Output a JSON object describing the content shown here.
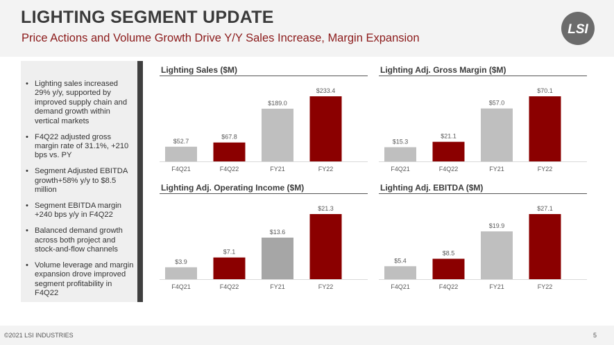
{
  "header": {
    "title": "LIGHTING SEGMENT UPDATE",
    "subtitle": "Price Actions and Volume Growth Drive Y/Y Sales Increase, Margin Expansion",
    "logo_text": "LSI"
  },
  "bullets": [
    "Lighting sales increased 29% y/y, supported by improved supply chain and demand growth within vertical markets",
    "F4Q22 adjusted gross margin rate of 31.1%, +210 bps vs. PY",
    "Segment Adjusted EBITDA growth+58% y/y to $8.5 million",
    "Segment EBITDA margin +240 bps y/y in F4Q22",
    "Balanced demand growth across both project and stock-and-flow channels",
    "Volume leverage and margin expansion drove improved segment profitability in F4Q22"
  ],
  "colors": {
    "prior": "#bfbfbf",
    "current": "#8b0000",
    "accent": "#8b1a1a",
    "rule": "#555555"
  },
  "chart_data": [
    {
      "id": "sales",
      "type": "bar",
      "title": "Lighting Sales ($M)",
      "categories": [
        "F4Q21",
        "F4Q22",
        "FY21",
        "FY22"
      ],
      "values": [
        52.7,
        67.8,
        189.0,
        233.4
      ],
      "labels": [
        "$52.7",
        "$67.8",
        "$189.0",
        "$233.4"
      ],
      "bar_colors": [
        "#bfbfbf",
        "#8b0000",
        "#bfbfbf",
        "#8b0000"
      ]
    },
    {
      "id": "gm",
      "type": "bar",
      "title": "Lighting Adj. Gross Margin ($M)",
      "categories": [
        "F4Q21",
        "F4Q22",
        "FY21",
        "FY22"
      ],
      "values": [
        15.3,
        21.1,
        57.0,
        70.1
      ],
      "labels": [
        "$15.3",
        "$21.1",
        "$57.0",
        "$70.1"
      ],
      "bar_colors": [
        "#bfbfbf",
        "#8b0000",
        "#bfbfbf",
        "#8b0000"
      ]
    },
    {
      "id": "oi",
      "type": "bar",
      "title": "Lighting Adj. Operating Income ($M)",
      "categories": [
        "F4Q21",
        "F4Q22",
        "FY21",
        "FY22"
      ],
      "values": [
        3.9,
        7.1,
        13.6,
        21.3
      ],
      "labels": [
        "$3.9",
        "$7.1",
        "$13.6",
        "$21.3"
      ],
      "bar_colors": [
        "#bfbfbf",
        "#8b0000",
        "#a6a6a6",
        "#8b0000"
      ]
    },
    {
      "id": "ebitda",
      "type": "bar",
      "title": "Lighting Adj. EBITDA ($M)",
      "categories": [
        "F4Q21",
        "F4Q22",
        "FY21",
        "FY22"
      ],
      "values": [
        5.4,
        8.5,
        19.9,
        27.1
      ],
      "labels": [
        "$5.4",
        "$8.5",
        "$19.9",
        "$27.1"
      ],
      "bar_colors": [
        "#bfbfbf",
        "#8b0000",
        "#bfbfbf",
        "#8b0000"
      ]
    }
  ],
  "footer": {
    "copyright": "©2021 LSI INDUSTRIES",
    "page": "5"
  }
}
